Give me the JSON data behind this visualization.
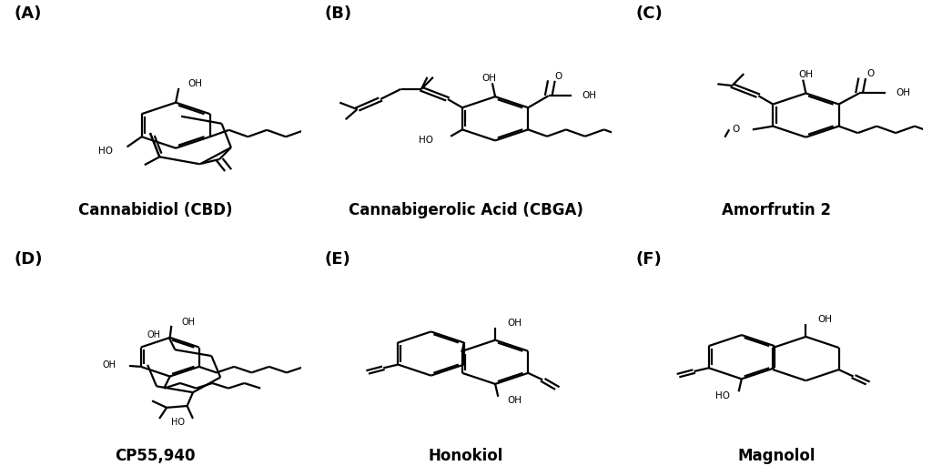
{
  "background_color": "#ffffff",
  "text_color": "#000000",
  "label_fontsize": 13,
  "name_fontsize": 12,
  "figsize": [
    10.24,
    5.23
  ],
  "dpi": 100,
  "panels": [
    {
      "label": "(A)",
      "name": "Cannabidiol (CBD)",
      "row": 0,
      "col": 0
    },
    {
      "label": "(B)",
      "name": "Cannabigerolic Acid (CBGA)",
      "row": 0,
      "col": 1
    },
    {
      "label": "(C)",
      "name": "Amorfrutin 2",
      "row": 0,
      "col": 2
    },
    {
      "label": "(D)",
      "name": "CP55,940",
      "row": 1,
      "col": 0
    },
    {
      "label": "(E)",
      "name": "Honokiol",
      "row": 1,
      "col": 1
    },
    {
      "label": "(F)",
      "name": "Magnolol",
      "row": 1,
      "col": 2
    }
  ]
}
